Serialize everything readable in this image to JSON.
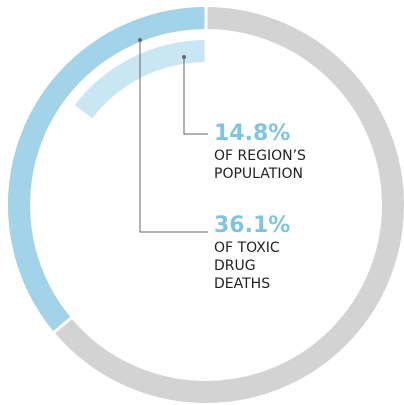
{
  "chart_data": {
    "type": "donut",
    "values": [
      36.1,
      14.8
    ],
    "value_labels": [
      "36.1%",
      "14.8%"
    ],
    "labels": [
      [
        "OF TOXIC",
        "DRUG",
        "DEATHS"
      ],
      [
        "OF REGION’S",
        "POPULATION"
      ]
    ],
    "colors": [
      "#a3d3e8",
      "#c8e6f3"
    ],
    "label_color": "#7fc4e2",
    "track_color": "#d3d3d3"
  }
}
